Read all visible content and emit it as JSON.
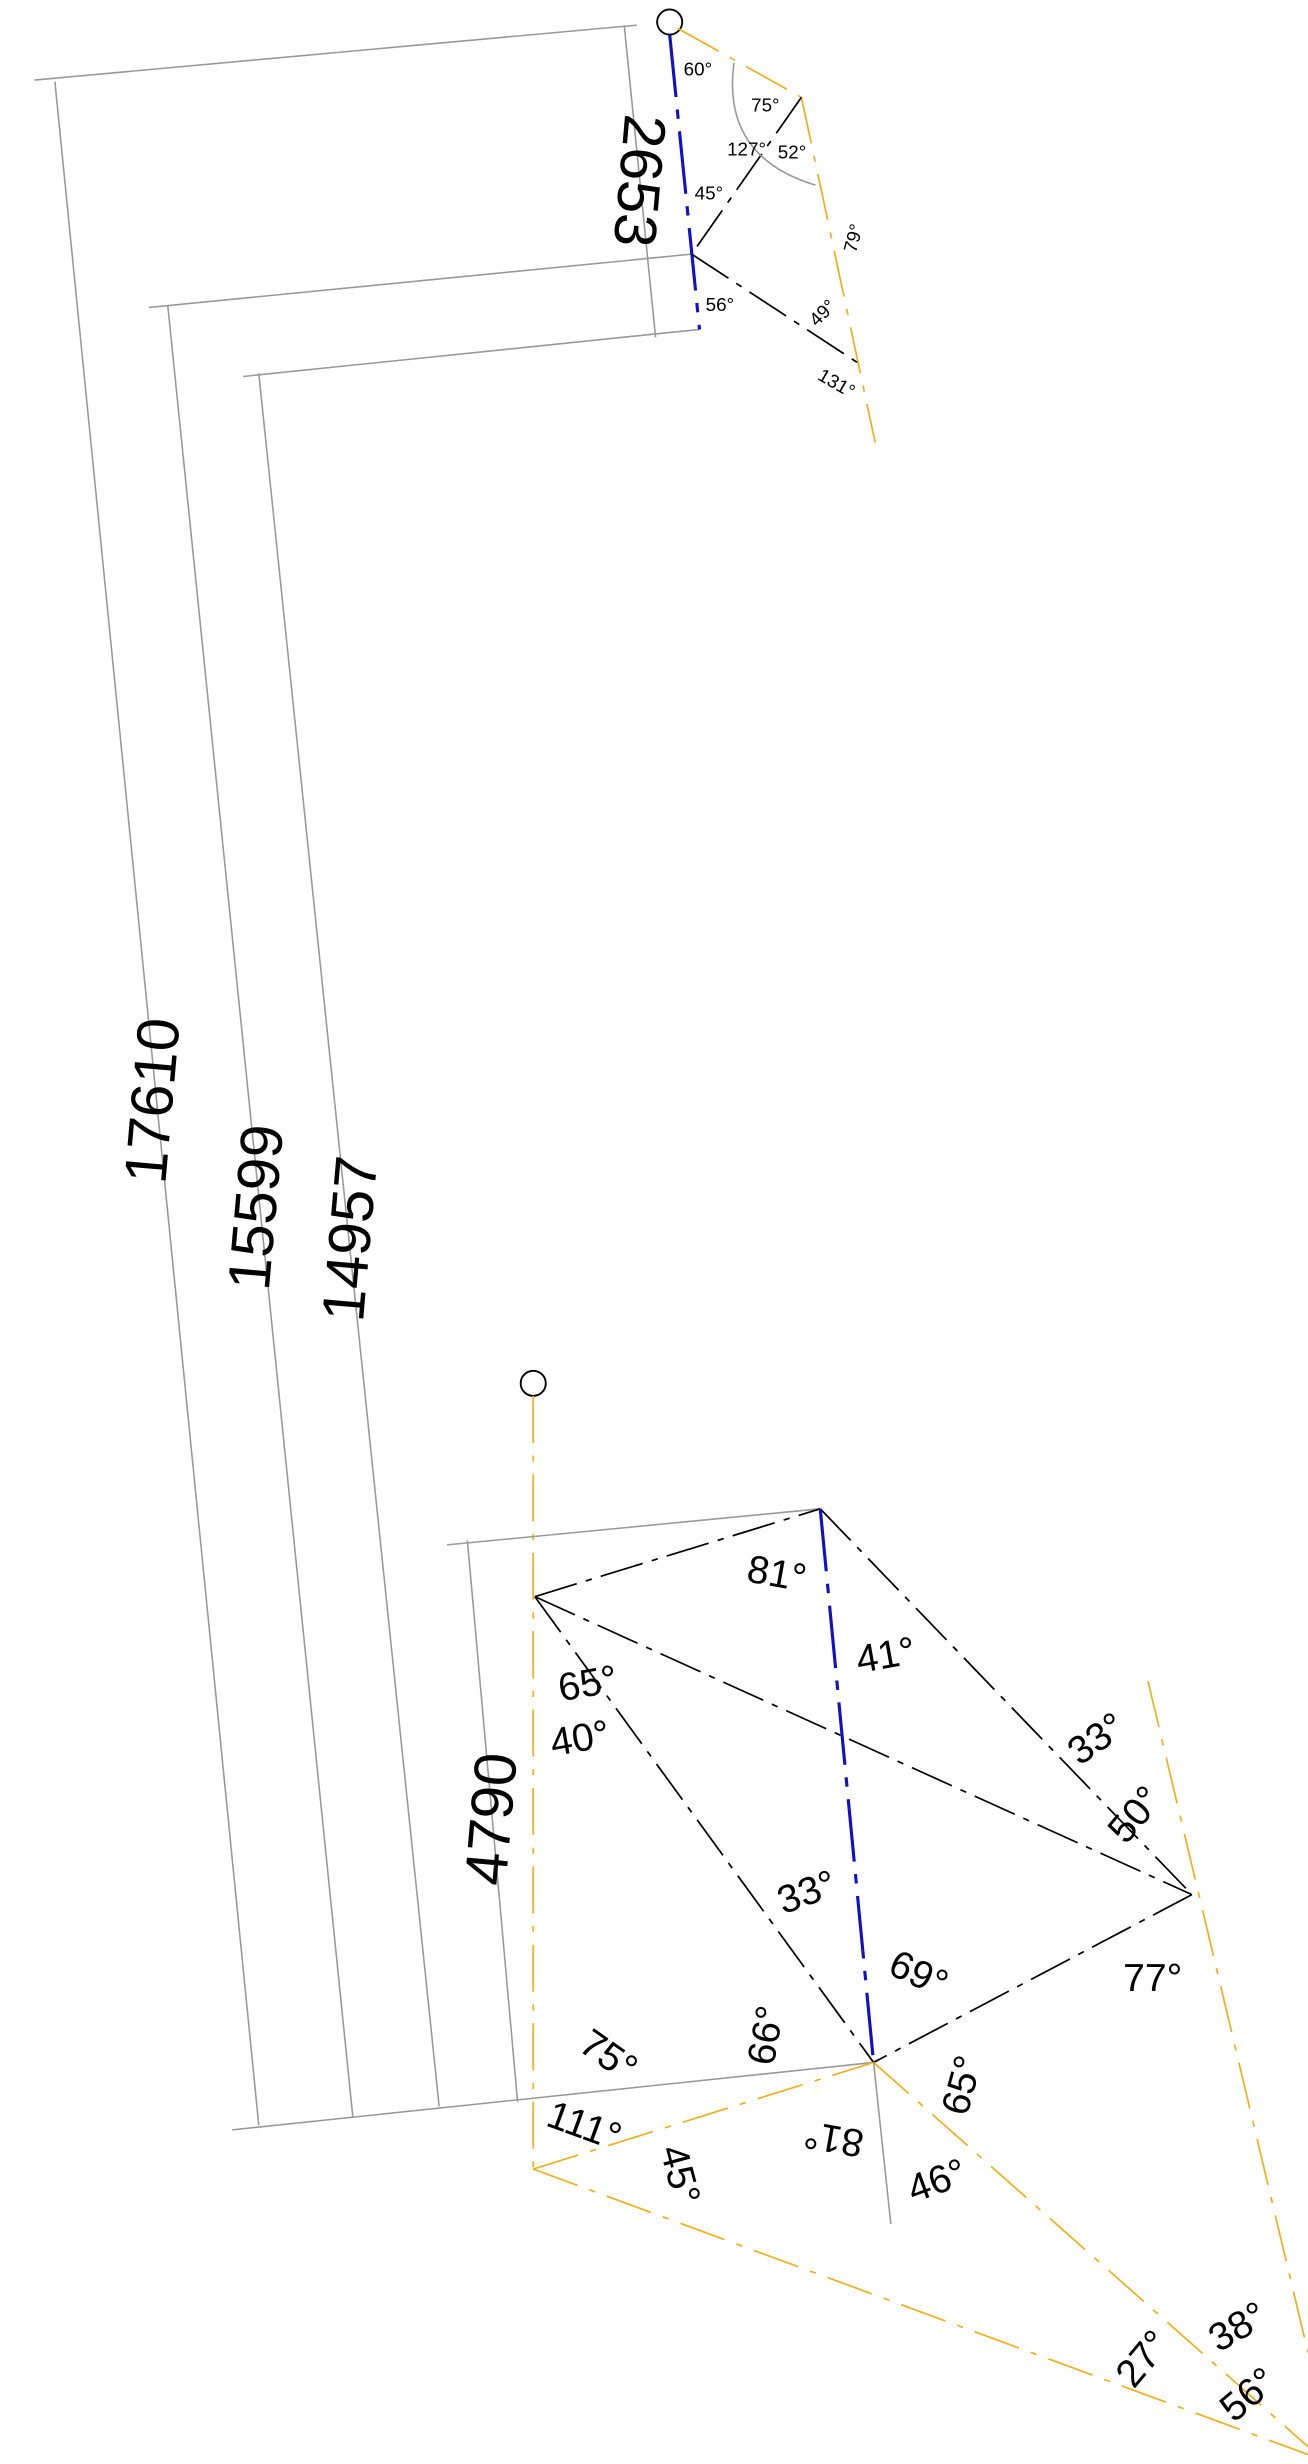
{
  "dimensions": [
    "17610",
    "15599",
    "14957",
    "2653",
    "4790"
  ],
  "top_angles": [
    "60°",
    "75°",
    "127°",
    "52°",
    "45°",
    "79°",
    "56°",
    "49°",
    "131°"
  ],
  "bottom_angles": [
    "81°",
    "41°",
    "65°",
    "40°",
    "33°",
    "50°",
    "33°",
    "69°",
    "77°",
    "66°",
    "75°",
    "65°",
    "111°",
    "81°",
    "45°",
    "46°",
    "27°",
    "38°",
    "56°"
  ]
}
